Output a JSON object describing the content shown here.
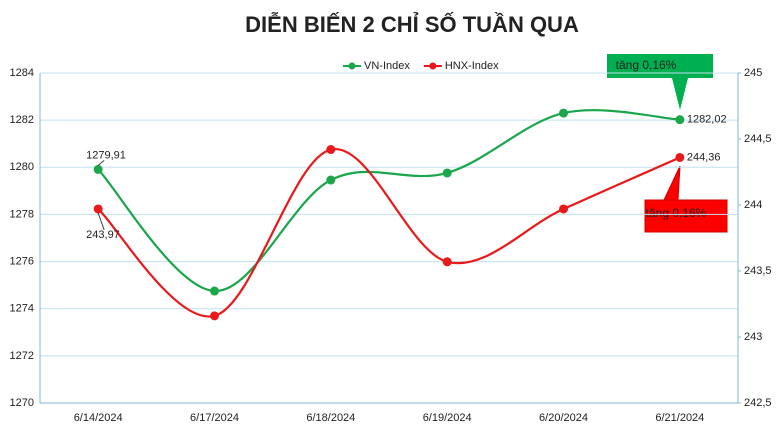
{
  "chart_data": {
    "type": "line",
    "title": "DIỄN BIẾN 2 CHỈ SỐ TUẦN QUA",
    "categories": [
      "6/14/2024",
      "6/17/2024",
      "6/18/2024",
      "6/19/2024",
      "6/20/2024",
      "6/21/2024"
    ],
    "series": [
      {
        "name": "VN-Index",
        "color": "#1aa64a",
        "values": [
          1279.91,
          1274.75,
          1279.46,
          1279.76,
          1282.3,
          1282.02
        ],
        "value_labels": [
          "1279,91",
          null,
          null,
          null,
          null,
          "1282,02"
        ]
      },
      {
        "name": "HNX-Index",
        "color": "#e8191a",
        "axis": "y2",
        "values": [
          243.97,
          243.16,
          244.42,
          243.57,
          243.97,
          244.36
        ],
        "value_labels": [
          "243,97",
          null,
          null,
          null,
          null,
          "244,36"
        ]
      }
    ],
    "ylim": [
      1270,
      1284
    ],
    "yticks": [
      1270,
      1272,
      1274,
      1276,
      1278,
      1280,
      1282,
      1284
    ],
    "y2lim": [
      242.5,
      245
    ],
    "y2ticks": [
      {
        "value": 242.5,
        "label": "242,5"
      },
      243,
      {
        "value": 243.5,
        "label": "243,5"
      },
      244,
      {
        "value": 244.5,
        "label": "244,5"
      },
      245
    ],
    "grid": true,
    "legend": "top",
    "smooth": true,
    "annotations": [
      {
        "text": "tăng 0,16%",
        "color": "#00b050"
      },
      {
        "text": "tăng 0,16%",
        "color": "#ff0000"
      }
    ]
  }
}
